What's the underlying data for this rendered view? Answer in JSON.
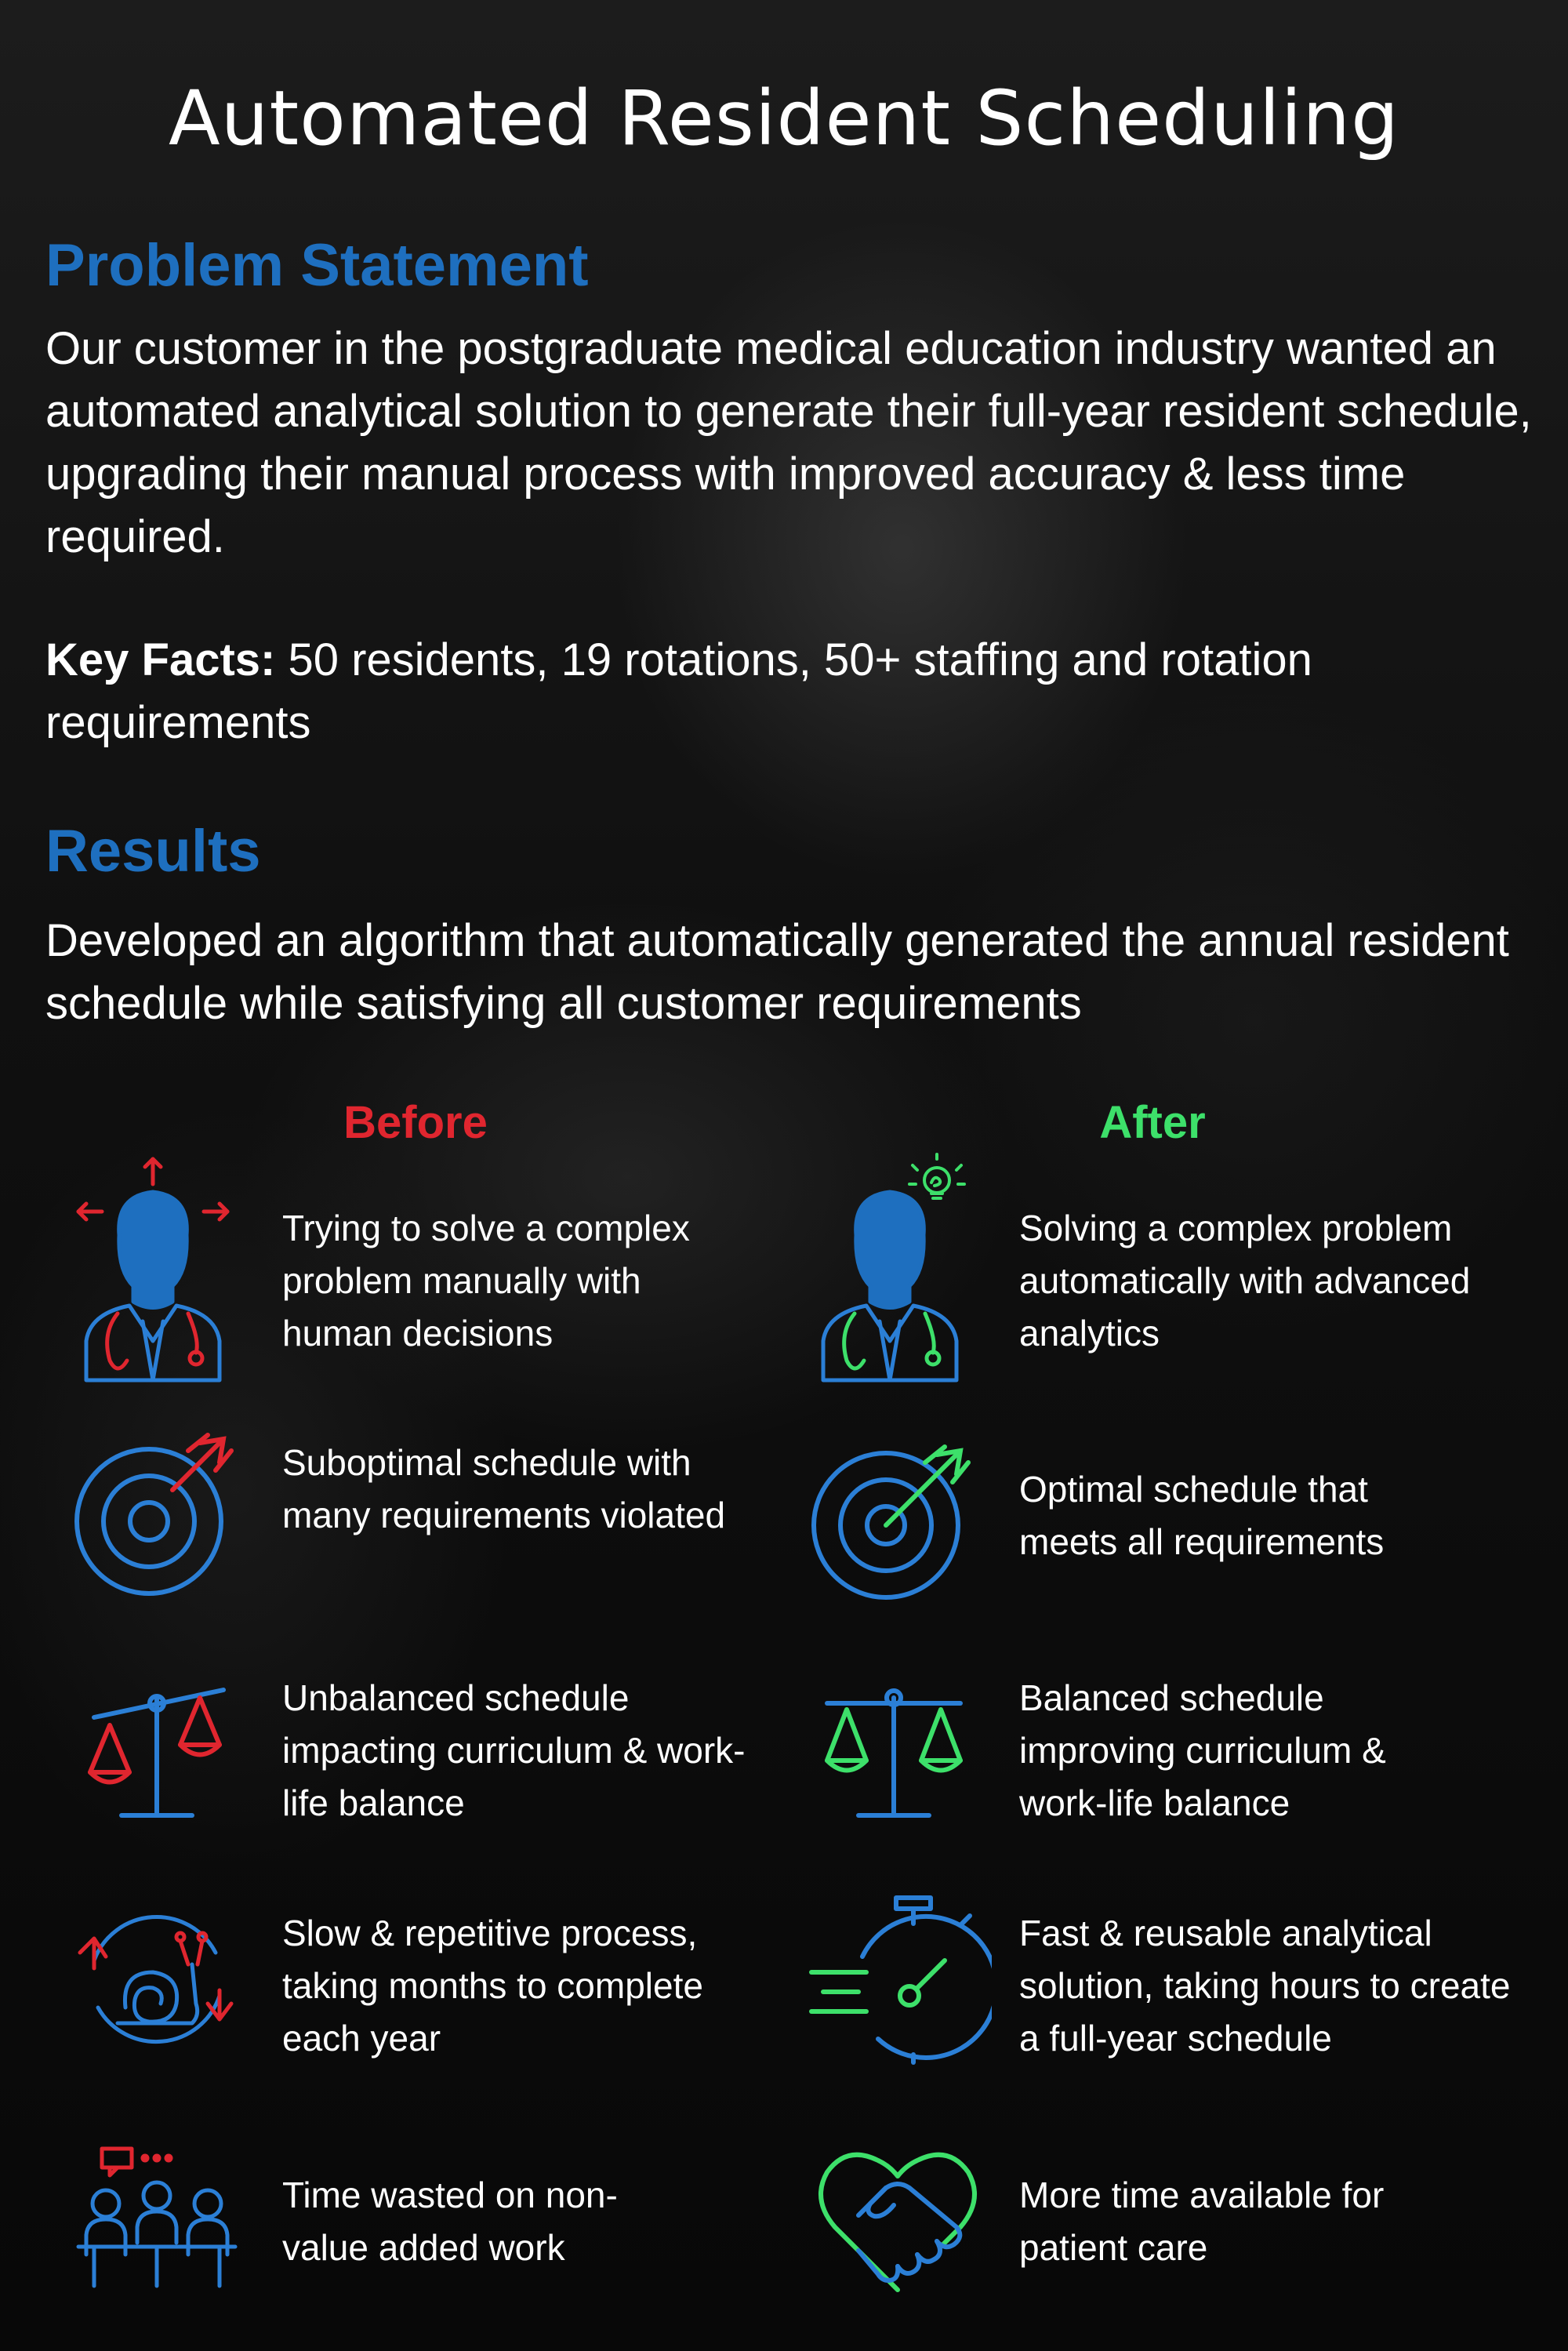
{
  "title": "Automated Resident Scheduling",
  "problem": {
    "heading": "Problem Statement",
    "body": "Our customer in the postgraduate medical education industry wanted an automated analytical solution to generate their full-year resident schedule, upgrading their manual process with improved accuracy & less time required.",
    "key_facts_label": "Key Facts:",
    "key_facts_text": " 50 residents, 19 rotations, 50+ staffing and rotation requirements"
  },
  "results": {
    "heading": "Results",
    "body": "Developed an algorithm that automatically generated the annual resident schedule while satisfying all customer requirements"
  },
  "comparison": {
    "before_label": "Before",
    "after_label": "After",
    "before_items": [
      {
        "icon": "stressed-doctor-icon",
        "text": "Trying to solve a complex problem manually with human decisions"
      },
      {
        "icon": "target-miss-icon",
        "text": "Suboptimal schedule with many requirements violated"
      },
      {
        "icon": "unbalanced-scale-icon",
        "text": "Unbalanced schedule impacting curriculum & work-life balance"
      },
      {
        "icon": "snail-cycle-icon",
        "text": "Slow & repetitive process, taking months to complete each year"
      },
      {
        "icon": "meeting-people-icon",
        "text": "Time wasted on non-value added work"
      }
    ],
    "after_items": [
      {
        "icon": "idea-doctor-icon",
        "text": "Solving a complex problem automatically with advanced analytics"
      },
      {
        "icon": "target-hit-icon",
        "text": "Optimal schedule that meets all requirements"
      },
      {
        "icon": "balanced-scale-icon",
        "text": "Balanced schedule improving curriculum & work-life balance"
      },
      {
        "icon": "stopwatch-icon",
        "text": "Fast & reusable analytical solution, taking hours to create a full-year schedule"
      },
      {
        "icon": "handshake-heart-icon",
        "text": "More time available for patient care"
      }
    ]
  },
  "colors": {
    "heading_blue": "#1e6fbf",
    "before_red": "#e0262f",
    "after_green": "#3de06a",
    "icon_blue": "#2b7fd6"
  }
}
